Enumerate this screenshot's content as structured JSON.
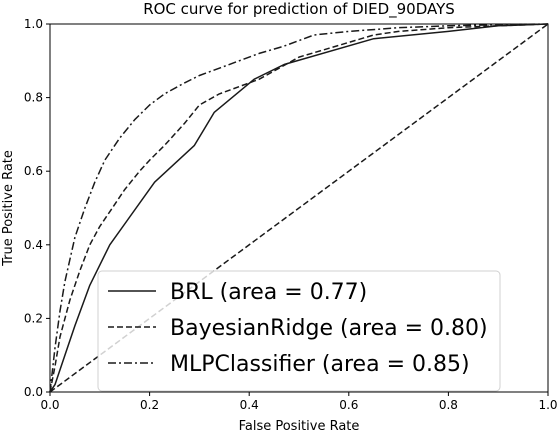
{
  "chart_data": {
    "type": "line",
    "title": "ROC curve for prediction of DIED_90DAYS",
    "xlabel": "False Positive Rate",
    "ylabel": "True Positive Rate",
    "xlim": [
      0.0,
      1.0
    ],
    "ylim": [
      0.0,
      1.0
    ],
    "xticks": [
      "0.0",
      "0.2",
      "0.4",
      "0.6",
      "0.8",
      "1.0"
    ],
    "yticks": [
      "0.0",
      "0.2",
      "0.4",
      "0.6",
      "0.8",
      "1.0"
    ],
    "grid": false,
    "legend_position": "lower-right",
    "series": [
      {
        "name": "BRL (area = 0.77)",
        "style": "solid",
        "color": "#1a1a1a",
        "x": [
          0.0,
          0.01,
          0.03,
          0.05,
          0.08,
          0.12,
          0.21,
          0.29,
          0.33,
          0.41,
          0.47,
          0.65,
          0.8,
          0.9,
          1.0
        ],
        "y": [
          0.0,
          0.02,
          0.1,
          0.18,
          0.29,
          0.4,
          0.57,
          0.67,
          0.76,
          0.85,
          0.89,
          0.96,
          0.98,
          0.995,
          1.0
        ]
      },
      {
        "name": "BayesianRidge (area = 0.80)",
        "style": "dashed",
        "color": "#1a1a1a",
        "x": [
          0.0,
          0.01,
          0.02,
          0.04,
          0.06,
          0.08,
          0.1,
          0.12,
          0.15,
          0.18,
          0.2,
          0.23,
          0.27,
          0.3,
          0.34,
          0.38,
          0.42,
          0.46,
          0.5,
          0.55,
          0.6,
          0.65,
          0.7,
          0.8,
          0.9,
          1.0
        ],
        "y": [
          0.0,
          0.07,
          0.15,
          0.25,
          0.33,
          0.4,
          0.45,
          0.49,
          0.55,
          0.6,
          0.63,
          0.67,
          0.73,
          0.78,
          0.81,
          0.83,
          0.85,
          0.88,
          0.91,
          0.93,
          0.95,
          0.97,
          0.98,
          0.99,
          0.995,
          1.0
        ]
      },
      {
        "name": "MLPClassifier (area = 0.85)",
        "style": "dashdot",
        "color": "#1a1a1a",
        "x": [
          0.0,
          0.01,
          0.02,
          0.03,
          0.04,
          0.05,
          0.07,
          0.09,
          0.11,
          0.14,
          0.17,
          0.2,
          0.23,
          0.27,
          0.3,
          0.34,
          0.38,
          0.42,
          0.47,
          0.53,
          0.6,
          0.7,
          0.8,
          0.9,
          1.0
        ],
        "y": [
          0.0,
          0.12,
          0.22,
          0.3,
          0.36,
          0.42,
          0.5,
          0.57,
          0.63,
          0.69,
          0.74,
          0.78,
          0.81,
          0.84,
          0.86,
          0.88,
          0.9,
          0.92,
          0.94,
          0.97,
          0.98,
          0.99,
          0.995,
          0.998,
          1.0
        ]
      },
      {
        "name": "",
        "style": "dashed",
        "color": "#1a1a1a",
        "x": [
          0.0,
          1.0
        ],
        "y": [
          0.0,
          1.0
        ]
      }
    ]
  }
}
